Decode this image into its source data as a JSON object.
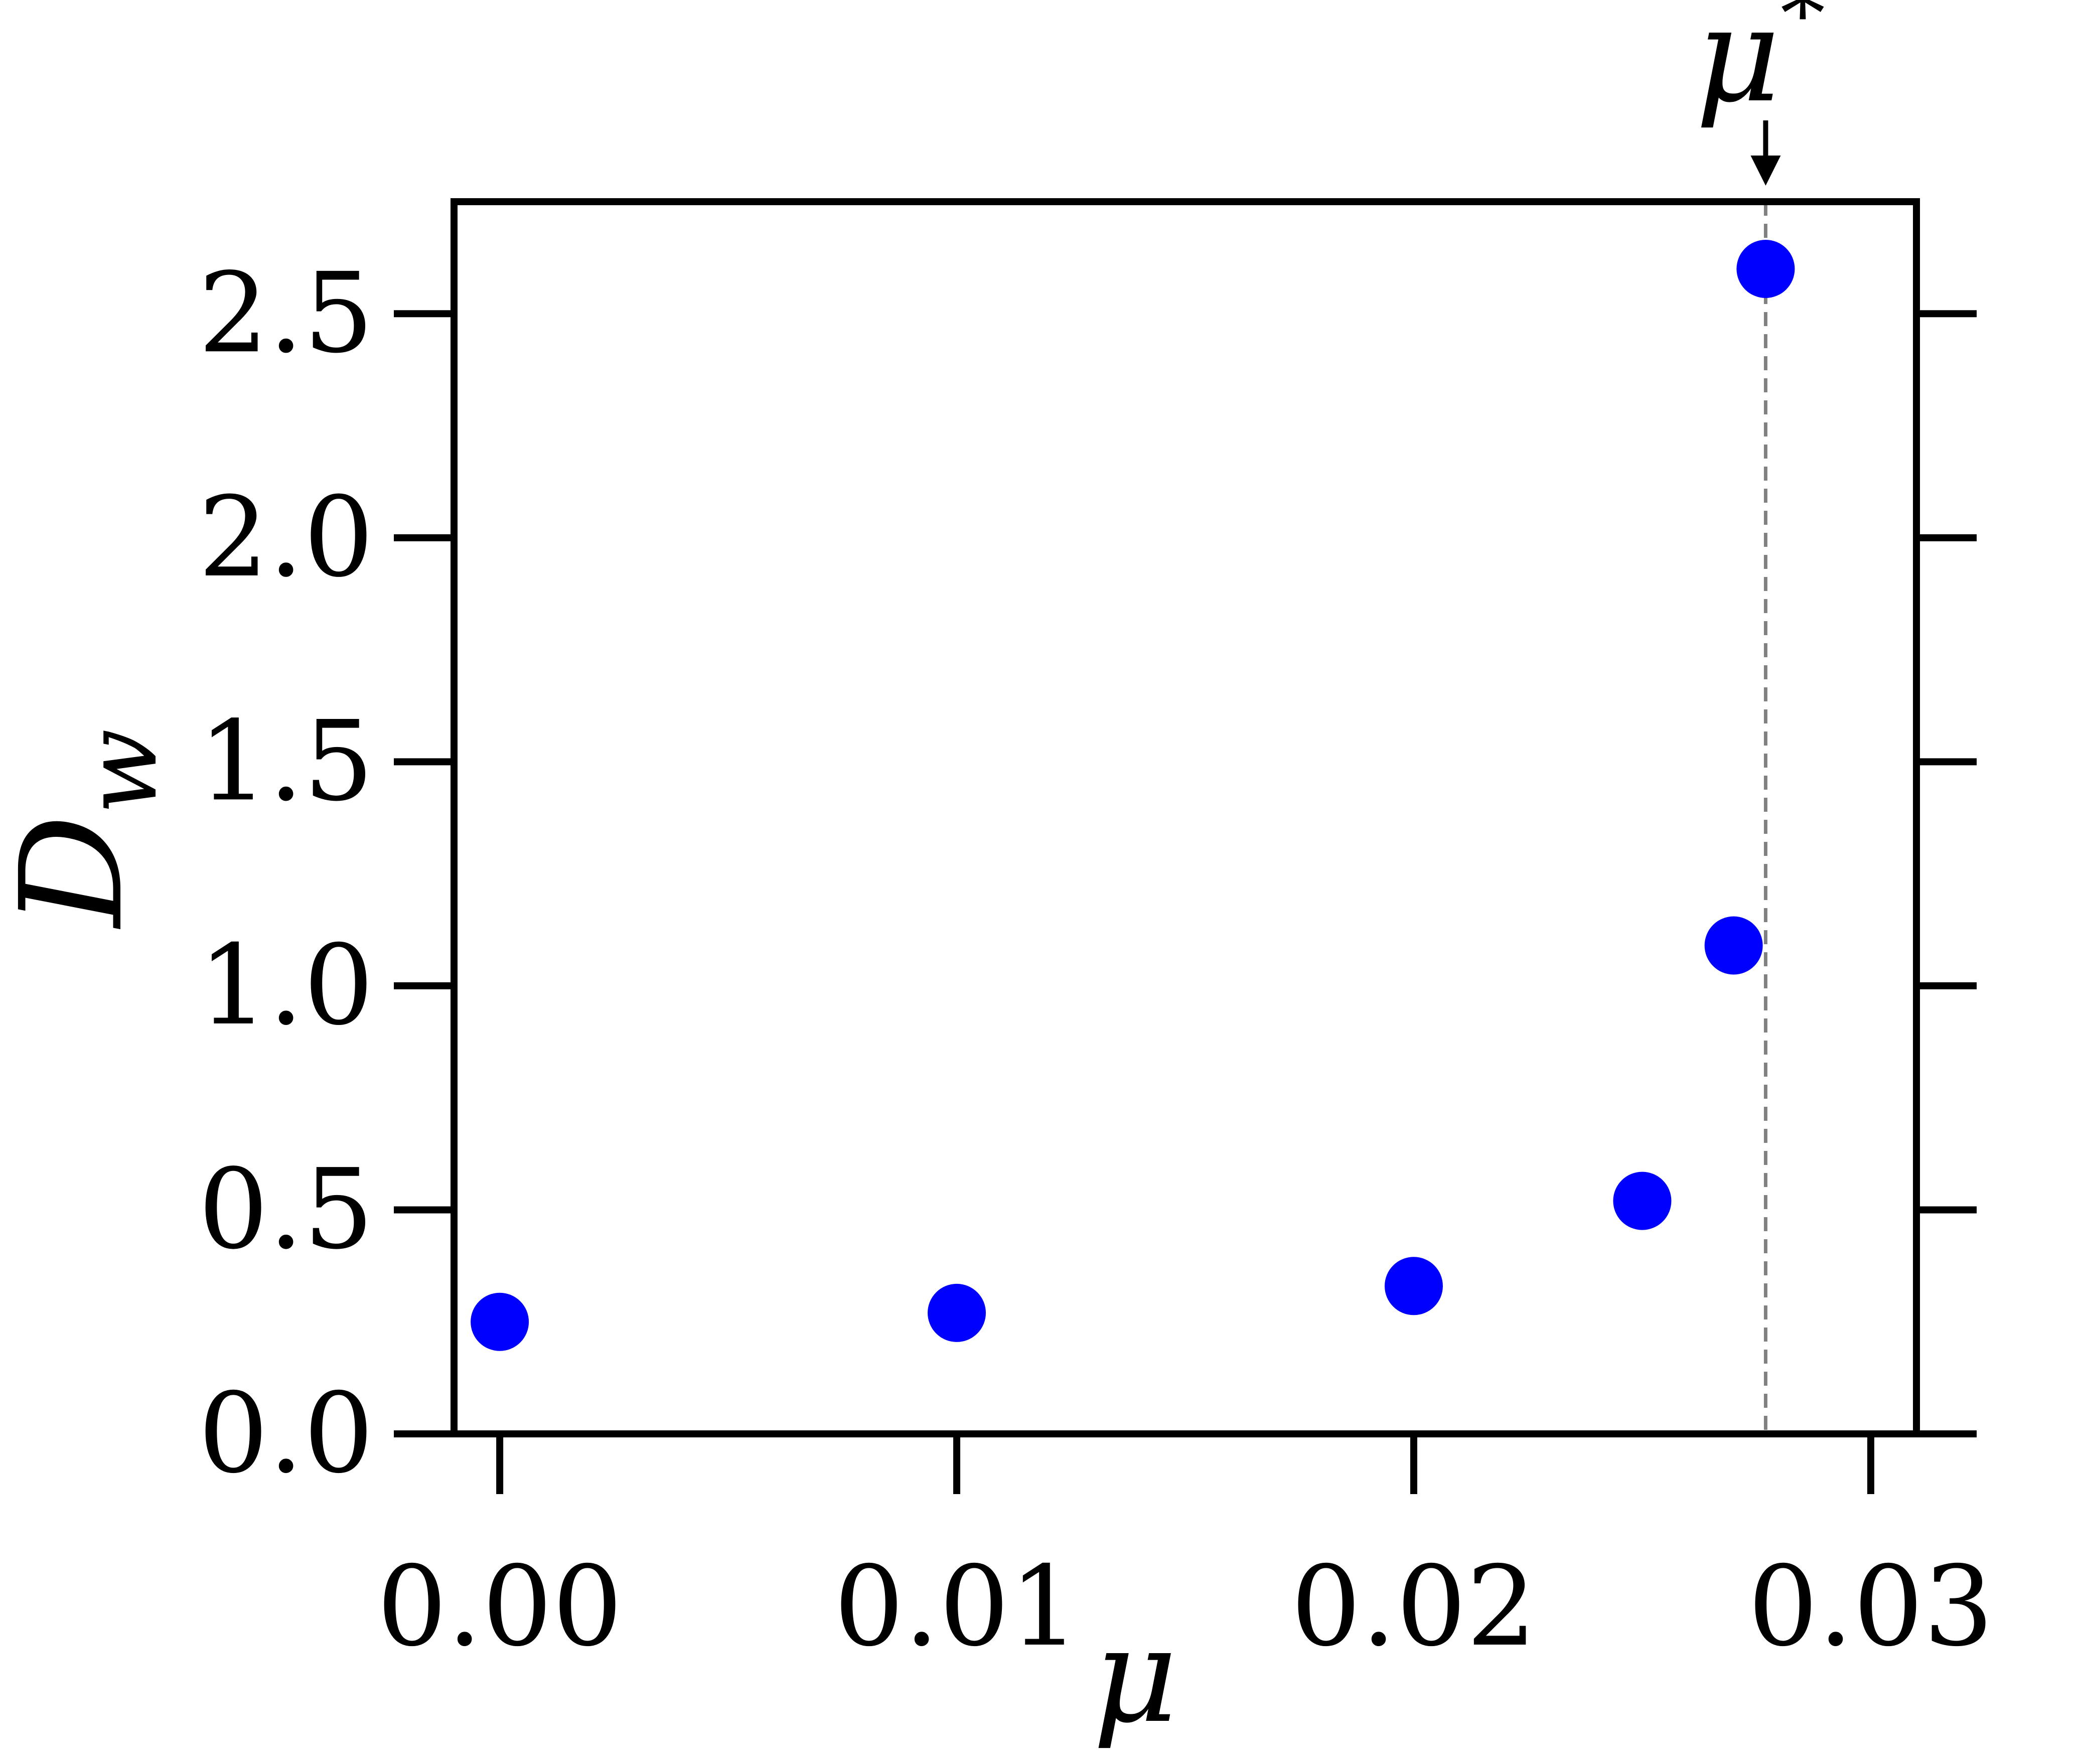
{
  "chart_data": {
    "type": "scatter",
    "title": "",
    "xlabel": "μ",
    "ylabel": "D",
    "ylabel_subscript": "w",
    "xlim": [
      -0.001,
      0.031
    ],
    "ylim": [
      0,
      2.75
    ],
    "x_ticks": [
      0.0,
      0.01,
      0.02,
      0.03
    ],
    "x_tick_labels": [
      "0.00",
      "0.01",
      "0.02",
      "0.03"
    ],
    "y_ticks": [
      0.0,
      0.5,
      1.0,
      1.5,
      2.0,
      2.5
    ],
    "y_tick_labels": [
      "0.0",
      "0.5",
      "1.0",
      "1.5",
      "2.0",
      "2.5"
    ],
    "grid": false,
    "series": [
      {
        "color": "#0000ff",
        "x": [
          0.0,
          0.01,
          0.02,
          0.025,
          0.027,
          0.0277
        ],
        "y": [
          0.25,
          0.27,
          0.33,
          0.52,
          1.09,
          2.6
        ]
      }
    ],
    "annotation": {
      "text": "μ",
      "superscript": "*",
      "x": 0.0277,
      "line_color": "#808080",
      "line_style": "dashed"
    }
  }
}
